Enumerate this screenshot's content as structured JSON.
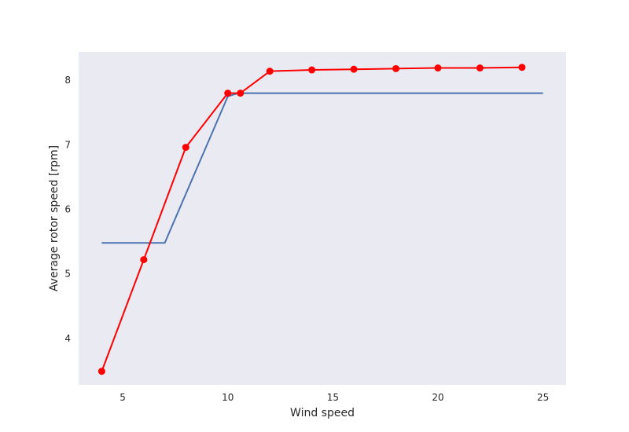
{
  "chart_data": {
    "type": "line",
    "xlabel": "Wind speed",
    "ylabel": "Average rotor speed [rpm]",
    "xlim": [
      2.9,
      26.1
    ],
    "ylim": [
      3.28,
      8.44
    ],
    "xticks": [
      5,
      10,
      15,
      20,
      25
    ],
    "yticks": [
      4,
      5,
      6,
      7,
      8
    ],
    "grid": false,
    "background": "#eaeaf2",
    "series": [
      {
        "color": "#4c72b0",
        "marker": "none",
        "x": [
          4,
          7,
          10,
          10.5,
          25
        ],
        "y": [
          5.48,
          5.48,
          7.75,
          7.8,
          7.8
        ]
      },
      {
        "color": "#ff0000",
        "marker": "circle",
        "x": [
          4,
          6,
          8,
          10,
          10.6,
          12,
          14,
          16,
          18,
          20,
          22,
          24
        ],
        "y": [
          3.49,
          5.22,
          6.96,
          7.8,
          7.8,
          8.14,
          8.16,
          8.17,
          8.18,
          8.19,
          8.19,
          8.2
        ]
      }
    ]
  }
}
